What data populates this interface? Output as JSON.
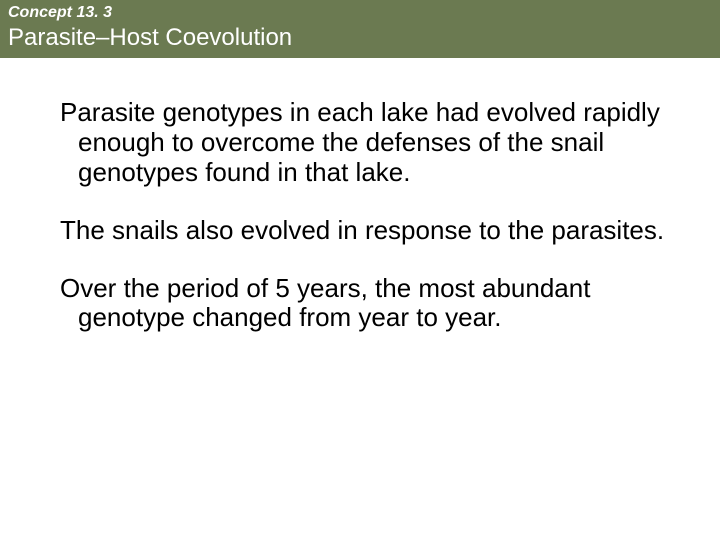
{
  "header": {
    "concept_label": "Concept 13. 3",
    "title": "Parasite–Host Coevolution",
    "bg_color": "#6b7a51",
    "text_color": "#ffffff",
    "concept_fontsize": 16,
    "title_fontsize": 24
  },
  "body": {
    "text_color": "#000000",
    "fontsize": 26,
    "paragraphs": [
      "Parasite genotypes in each lake had evolved rapidly enough to overcome the defenses of the snail genotypes found in that lake.",
      "The snails also evolved in response to the parasites.",
      "Over the period of 5 years, the most abundant genotype changed from year to year."
    ]
  },
  "background_color": "#ffffff"
}
